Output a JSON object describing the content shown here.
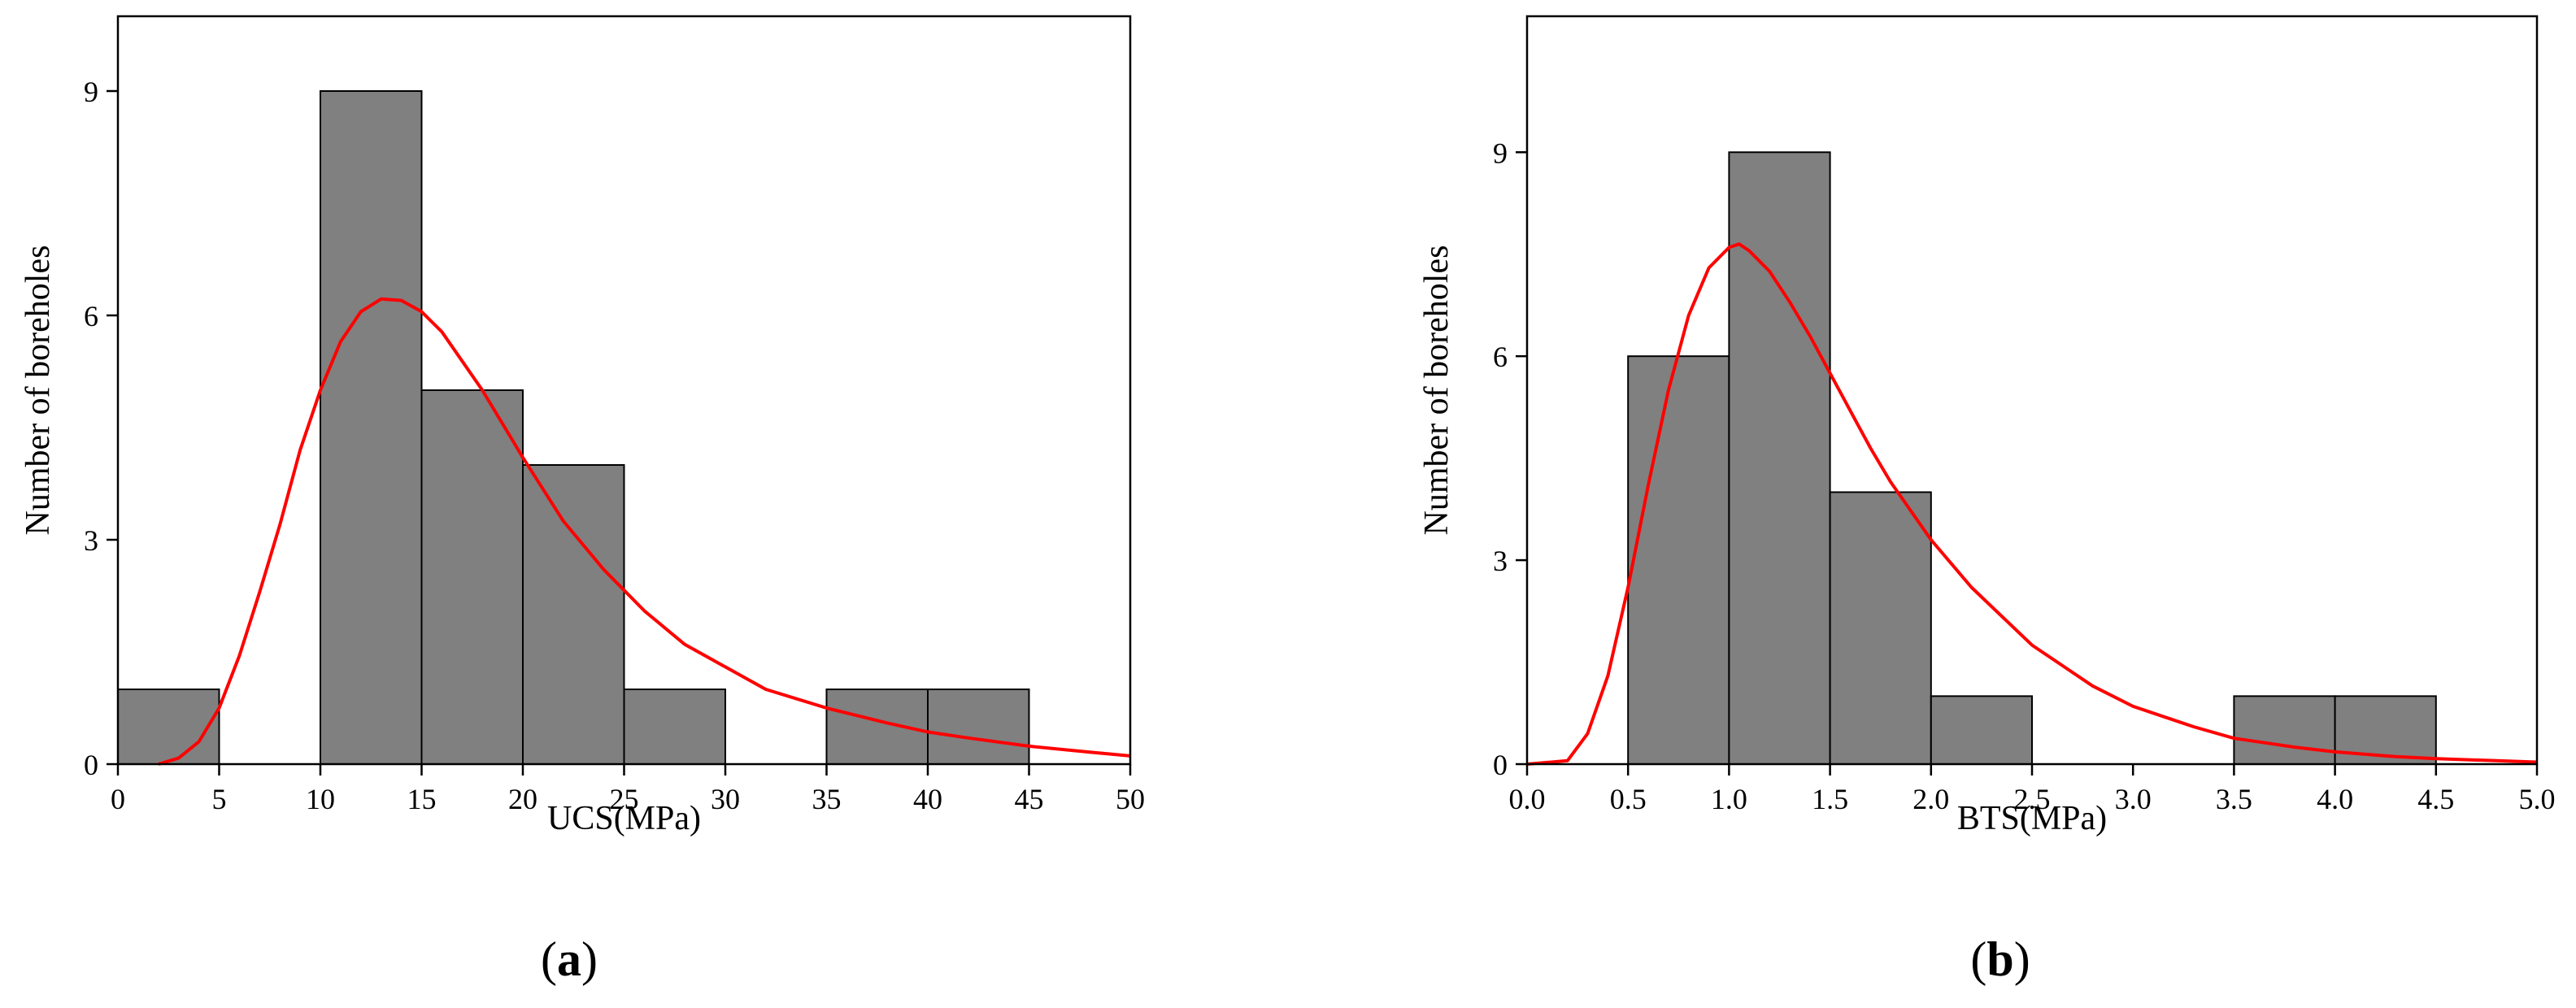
{
  "chart_data": [
    {
      "type": "bar",
      "panel_label": "a",
      "xlabel": "UCS(MPa)",
      "ylabel": "Number of boreholes",
      "xlim": [
        0,
        50
      ],
      "ylim": [
        0,
        10
      ],
      "x_ticks": [
        "0",
        "5",
        "10",
        "15",
        "20",
        "25",
        "30",
        "35",
        "40",
        "45",
        "50"
      ],
      "y_ticks": [
        "0",
        "3",
        "6",
        "9"
      ],
      "bins": [
        {
          "from": 0,
          "to": 5,
          "count": 1
        },
        {
          "from": 10,
          "to": 15,
          "count": 9
        },
        {
          "from": 15,
          "to": 20,
          "count": 5
        },
        {
          "from": 20,
          "to": 25,
          "count": 4
        },
        {
          "from": 25,
          "to": 30,
          "count": 1
        },
        {
          "from": 35,
          "to": 40,
          "count": 1
        },
        {
          "from": 40,
          "to": 45,
          "count": 1
        }
      ],
      "fit_curve": {
        "type": "lognormal",
        "x": [
          2,
          3,
          4,
          5,
          6,
          7,
          8,
          9,
          10,
          11,
          12,
          13,
          14,
          15,
          16,
          18,
          20,
          22,
          24,
          26,
          28,
          30,
          32,
          35,
          38,
          40,
          42,
          45,
          48,
          50
        ],
        "y": [
          0.0,
          0.08,
          0.3,
          0.75,
          1.45,
          2.3,
          3.2,
          4.2,
          5.0,
          5.65,
          6.05,
          6.22,
          6.2,
          6.05,
          5.78,
          5.0,
          4.1,
          3.25,
          2.6,
          2.05,
          1.6,
          1.3,
          1.0,
          0.75,
          0.55,
          0.43,
          0.35,
          0.24,
          0.16,
          0.11
        ],
        "color": "#ff0000"
      },
      "bar_color": "#808080"
    },
    {
      "type": "bar",
      "panel_label": "b",
      "xlabel": "BTS(MPa)",
      "ylabel": "Number of boreholes",
      "xlim": [
        0,
        5
      ],
      "ylim": [
        0,
        11
      ],
      "x_ticks": [
        "0.0",
        "0.5",
        "1.0",
        "1.5",
        "2.0",
        "2.5",
        "3.0",
        "3.5",
        "4.0",
        "4.5",
        "5.0"
      ],
      "y_ticks": [
        "0",
        "3",
        "6",
        "9"
      ],
      "bins": [
        {
          "from": 0.5,
          "to": 1.0,
          "count": 6
        },
        {
          "from": 1.0,
          "to": 1.5,
          "count": 9
        },
        {
          "from": 1.5,
          "to": 2.0,
          "count": 4
        },
        {
          "from": 2.0,
          "to": 2.5,
          "count": 1
        },
        {
          "from": 3.5,
          "to": 4.0,
          "count": 1
        },
        {
          "from": 4.0,
          "to": 4.5,
          "count": 1
        }
      ],
      "fit_curve": {
        "type": "lognormal",
        "x": [
          0.0,
          0.2,
          0.3,
          0.4,
          0.5,
          0.6,
          0.7,
          0.8,
          0.9,
          1.0,
          1.05,
          1.1,
          1.2,
          1.3,
          1.4,
          1.5,
          1.6,
          1.7,
          1.8,
          2.0,
          2.2,
          2.5,
          2.8,
          3.0,
          3.3,
          3.5,
          3.8,
          4.0,
          4.3,
          4.5,
          4.8,
          5.0
        ],
        "y": [
          0.0,
          0.05,
          0.45,
          1.3,
          2.6,
          4.1,
          5.5,
          6.6,
          7.3,
          7.6,
          7.65,
          7.55,
          7.25,
          6.8,
          6.3,
          5.75,
          5.2,
          4.65,
          4.15,
          3.3,
          2.6,
          1.75,
          1.15,
          0.85,
          0.55,
          0.38,
          0.25,
          0.18,
          0.11,
          0.08,
          0.05,
          0.03
        ],
        "color": "#ff0000"
      },
      "bar_color": "#808080"
    }
  ]
}
